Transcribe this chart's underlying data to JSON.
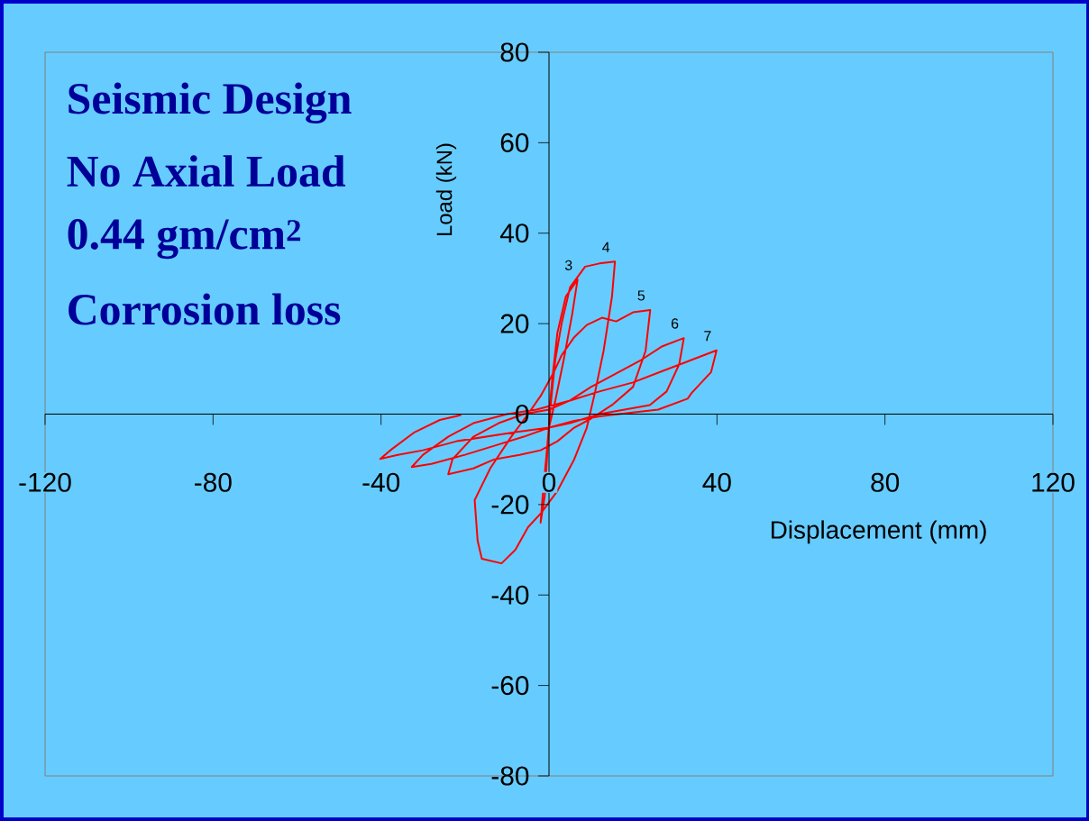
{
  "chart_data": {
    "type": "line",
    "title": "Seismic Design",
    "subtitle": "No Axial Load",
    "annotations": [
      "0.44 gm/cm$^{2}$",
      "Corrosion loss",
      {
        "text": "3",
        "x": 6.8,
        "y": 29.7
      },
      {
        "text": "4",
        "x": 15.7,
        "y": 33.7
      },
      {
        "text": "5",
        "x": 24.1,
        "y": 23
      },
      {
        "text": "6",
        "x": 32.1,
        "y": 16.8
      },
      {
        "text": "7",
        "x": 39.9,
        "y": 14.1
      }
    ],
    "xlabel": "Displacement (mm)",
    "ylabel": "Load (kN)",
    "series": [
      {
        "color": "#ff0000",
        "x": [
          0,
          0.8,
          2,
          4,
          6.8,
          5.5,
          3.5,
          1.5,
          0,
          -0.5,
          -1,
          -2,
          -1.5,
          -0.5,
          0.5,
          1.5,
          3,
          5,
          8.6,
          12,
          15.7,
          15,
          13,
          11,
          9,
          6,
          2,
          -2,
          -5,
          -8,
          -11.3,
          -16,
          -17,
          -17.7,
          -14,
          -9,
          -5,
          -2,
          1,
          3,
          6,
          9,
          12.6,
          16,
          20,
          24.1,
          23,
          20,
          15,
          10,
          6,
          2,
          -2,
          -7,
          -13,
          -18,
          -24,
          -23,
          -18,
          -12,
          -6,
          0,
          5,
          10,
          16,
          22,
          27,
          32.1,
          31,
          28,
          24,
          18,
          12,
          5,
          0,
          -6,
          -13,
          -20,
          -28,
          -32.7,
          -30,
          -24,
          -18,
          -10,
          -3,
          5,
          12,
          20,
          27,
          34,
          39.9,
          38.6,
          34,
          33,
          26,
          16.6,
          12,
          6,
          0,
          -8,
          -15,
          -22,
          -30,
          -36,
          -40.2,
          -37.5,
          -32,
          -26,
          -20.9
        ],
        "values": [
          0,
          8,
          18,
          26,
          29.7,
          22,
          12,
          3,
          -3,
          -10,
          -18,
          -24,
          -18,
          -8,
          3,
          12,
          20,
          28,
          32.6,
          33.3,
          33.7,
          26,
          14,
          5,
          -3,
          -10,
          -17,
          -22,
          -25,
          -30,
          -33,
          -32,
          -28,
          -19,
          -12,
          -5,
          0,
          4,
          9,
          13,
          17,
          19.7,
          21.3,
          20.5,
          22.5,
          23,
          14,
          6,
          2,
          -1,
          -3,
          -6,
          -8,
          -9,
          -10,
          -12,
          -13.3,
          -10,
          -5,
          -2,
          0,
          1,
          3,
          6,
          9,
          12,
          15,
          16.8,
          11,
          5,
          2,
          1,
          0,
          -2,
          -3,
          -5,
          -7,
          -9,
          -11,
          -11.7,
          -9,
          -5,
          -2,
          0,
          1,
          3,
          5,
          7,
          9.5,
          12,
          14.1,
          9.3,
          4.7,
          3.4,
          1,
          0,
          -0.5,
          -1.5,
          -3,
          -4,
          -5,
          -6,
          -8,
          -9,
          -9.9,
          -7.8,
          -4,
          -1.3,
          -0.2
        ]
      }
    ],
    "xlim": [
      -120,
      120
    ],
    "ylim": [
      -80,
      80
    ],
    "xticks": [
      -120,
      -80,
      -40,
      0,
      40,
      80,
      120
    ],
    "yticks": [
      -80,
      -60,
      -40,
      -20,
      0,
      20,
      40,
      60,
      80
    ],
    "grid": false
  }
}
